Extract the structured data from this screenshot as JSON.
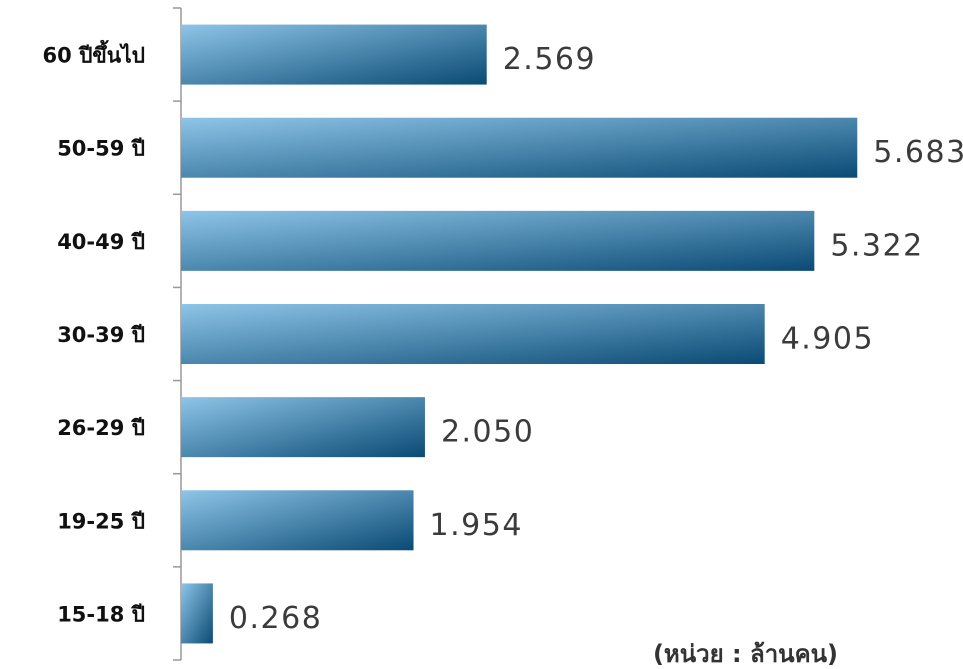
{
  "chart_data": {
    "type": "hbar",
    "categories": [
      "60 ปีขึ้นไป",
      "50-59 ปี",
      "40-49 ปี",
      "30-39 ปี",
      "26-29 ปี",
      "19-25 ปี",
      "15-18 ปี"
    ],
    "values": [
      2.569,
      5.683,
      5.322,
      4.905,
      2.05,
      1.954,
      0.268
    ],
    "value_labels": [
      "2.569",
      "5.683",
      "5.322",
      "4.905",
      "2.050",
      "1.954",
      "0.268"
    ],
    "colors": [
      "#8ec5e8",
      "#0a4a74"
    ],
    "xlim": [
      0,
      6
    ],
    "annotation": "(หน่วย : ล้านคน)"
  }
}
